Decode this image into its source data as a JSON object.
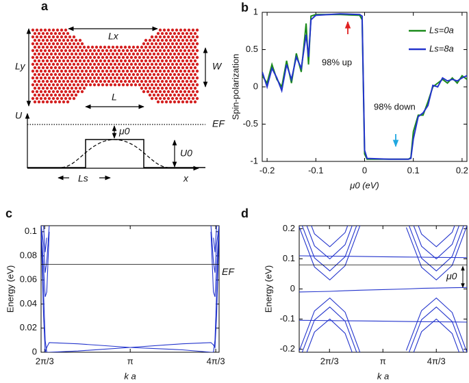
{
  "chart_data": [
    {
      "type": "diagram",
      "panel": "a",
      "labels": {
        "Lx": "Lx",
        "Ly": "Ly",
        "W": "W",
        "L": "L",
        "U": "U",
        "EF": "EF",
        "mu0": "μ0",
        "U0": "U0",
        "Ls": "Ls",
        "x": "x"
      }
    },
    {
      "type": "line",
      "panel": "b",
      "xlabel": "μ0 (eV)",
      "ylabel": "Spin-polarization",
      "xlim": [
        -0.21,
        0.21
      ],
      "ylim": [
        -1,
        1
      ],
      "xticks": [
        -0.2,
        -0.1,
        0,
        0.1,
        0.2
      ],
      "yticks": [
        -1,
        -0.5,
        0,
        0.5,
        1
      ],
      "annotations": [
        "98% up",
        "98% down"
      ],
      "legend": "upper right",
      "x": [
        -0.21,
        -0.2,
        -0.19,
        -0.18,
        -0.17,
        -0.16,
        -0.15,
        -0.14,
        -0.13,
        -0.12,
        -0.115,
        -0.11,
        -0.1,
        -0.05,
        -0.01,
        -0.005,
        0,
        0.005,
        0.05,
        0.09,
        0.095,
        0.1,
        0.11,
        0.12,
        0.13,
        0.14,
        0.15,
        0.16,
        0.17,
        0.18,
        0.19,
        0.2,
        0.21
      ],
      "series": [
        {
          "name": "Ls=0a",
          "color": "#1a8a1a",
          "values": [
            0.15,
            0.05,
            0.3,
            0.1,
            0.0,
            0.35,
            0.05,
            0.45,
            0.2,
            0.85,
            0.3,
            0.95,
            0.97,
            0.97,
            0.96,
            0.9,
            -0.9,
            -0.97,
            -0.97,
            -0.97,
            -0.95,
            -0.6,
            -0.38,
            -0.38,
            -0.2,
            0.0,
            0.05,
            0.1,
            0.05,
            0.12,
            0.05,
            0.15,
            0.1
          ]
        },
        {
          "name": "Ls=8a",
          "color": "#2233cc",
          "values": [
            0.2,
            0.0,
            0.25,
            0.12,
            -0.05,
            0.3,
            0.1,
            0.4,
            0.25,
            0.7,
            0.4,
            0.9,
            0.96,
            0.98,
            0.97,
            0.95,
            -0.85,
            -0.96,
            -0.97,
            -0.97,
            -0.96,
            -0.7,
            -0.4,
            -0.35,
            -0.25,
            0.02,
            0.0,
            0.12,
            0.08,
            0.1,
            0.08,
            0.12,
            0.15
          ]
        }
      ]
    },
    {
      "type": "line",
      "panel": "c",
      "xlabel": "k a",
      "ylabel": "Energy (eV)",
      "xlim": [
        2.05,
        4.23
      ],
      "ylim": [
        0,
        0.105
      ],
      "xticks": [
        {
          "value": 2.094,
          "label": "2π/3"
        },
        {
          "value": 3.1416,
          "label": "π"
        },
        {
          "value": 4.189,
          "label": "4π/3"
        }
      ],
      "yticks": [
        0,
        0.02,
        0.04,
        0.06,
        0.08,
        0.1
      ],
      "fermi_level": 0.073,
      "fermi_label": "EF",
      "x": [
        2.05,
        2.08,
        2.1,
        2.12,
        2.15,
        2.5,
        3.14,
        3.78,
        4.13,
        4.16,
        4.18,
        4.2,
        4.23
      ],
      "series": [
        {
          "color": "#2233cc",
          "values": [
            0.105,
            0.03,
            0.0,
            0.004,
            0.008,
            0.007,
            0.004,
            0.002,
            0.0,
            0.0,
            0.01,
            0.05,
            0.105
          ]
        },
        {
          "color": "#2233cc",
          "values": [
            0.105,
            0.05,
            0.01,
            0.0,
            0.0,
            0.001,
            0.004,
            0.007,
            0.008,
            0.006,
            0.004,
            0.03,
            0.105
          ]
        },
        {
          "color": "#2233cc",
          "values": [
            0.105,
            0.07,
            0.046,
            0.05,
            0.1,
            null,
            null,
            null,
            0.1,
            0.05,
            0.046,
            0.07,
            0.105
          ]
        },
        {
          "color": "#2233cc",
          "values": [
            0.105,
            0.09,
            0.066,
            0.075,
            0.105,
            null,
            null,
            null,
            0.105,
            0.075,
            0.066,
            0.09,
            0.105
          ]
        },
        {
          "color": "#2233cc",
          "values": [
            null,
            0.105,
            0.083,
            0.095,
            null,
            null,
            null,
            null,
            null,
            0.095,
            0.083,
            0.105,
            null
          ]
        }
      ]
    },
    {
      "type": "line",
      "panel": "d",
      "xlabel": "k a",
      "ylabel": "Energy (eV)",
      "xlim": [
        1.5,
        4.79
      ],
      "ylim": [
        -0.21,
        0.21
      ],
      "xticks": [
        {
          "value": 2.094,
          "label": "2π/3"
        },
        {
          "value": 3.1416,
          "label": "π"
        },
        {
          "value": 4.189,
          "label": "4π/3"
        }
      ],
      "yticks": [
        -0.2,
        -0.1,
        0,
        0.1,
        0.2
      ],
      "fermi_level": 0.08,
      "mu_label": "μ0",
      "x": [
        1.5,
        1.8,
        2.1,
        2.4,
        2.7,
        3.14,
        3.6,
        3.9,
        4.19,
        4.5,
        4.79
      ],
      "series": [
        {
          "color": "#2233cc",
          "values": [
            0.206,
            0.073,
            0.03,
            0.077,
            0.214,
            null,
            0.204,
            0.072,
            0.03,
            0.078,
            0.21
          ]
        },
        {
          "color": "#2233cc",
          "values": [
            0.236,
            0.103,
            0.06,
            0.107,
            0.244,
            null,
            0.234,
            0.102,
            0.06,
            0.108,
            0.24
          ]
        },
        {
          "color": "#2233cc",
          "values": [
            0.276,
            0.143,
            0.1,
            0.147,
            0.284,
            null,
            0.274,
            0.142,
            0.1,
            0.148,
            0.28
          ]
        },
        {
          "color": "#2233cc",
          "values": [
            0.316,
            0.183,
            0.14,
            0.187,
            0.324,
            null,
            0.314,
            0.182,
            0.14,
            0.188,
            0.32
          ]
        },
        {
          "color": "#2233cc",
          "values": [
            -0.206,
            -0.073,
            -0.03,
            -0.077,
            -0.214,
            null,
            -0.204,
            -0.072,
            -0.03,
            -0.078,
            -0.21
          ]
        },
        {
          "color": "#2233cc",
          "values": [
            -0.236,
            -0.103,
            -0.06,
            -0.107,
            -0.244,
            null,
            -0.234,
            -0.102,
            -0.06,
            -0.108,
            -0.24
          ]
        },
        {
          "color": "#2233cc",
          "values": [
            -0.276,
            -0.143,
            -0.1,
            -0.147,
            -0.284,
            null,
            -0.274,
            -0.142,
            -0.1,
            -0.148,
            -0.28
          ]
        },
        {
          "color": "#2233cc",
          "values": [
            0.11,
            0.1095,
            0.109,
            0.1085,
            0.108,
            0.107,
            0.106,
            0.1055,
            0.105,
            0.1045,
            0.104
          ]
        },
        {
          "color": "#2233cc",
          "values": [
            -0.104,
            -0.1045,
            -0.105,
            -0.1055,
            -0.106,
            -0.107,
            -0.108,
            -0.1085,
            -0.109,
            -0.1095,
            -0.11
          ]
        },
        {
          "color": "#2233cc",
          "values": [
            -0.01,
            -0.009,
            -0.008,
            -0.006,
            -0.004,
            -0.002,
            0.0,
            0.002,
            0.003,
            0.004,
            0.005
          ]
        }
      ]
    }
  ]
}
